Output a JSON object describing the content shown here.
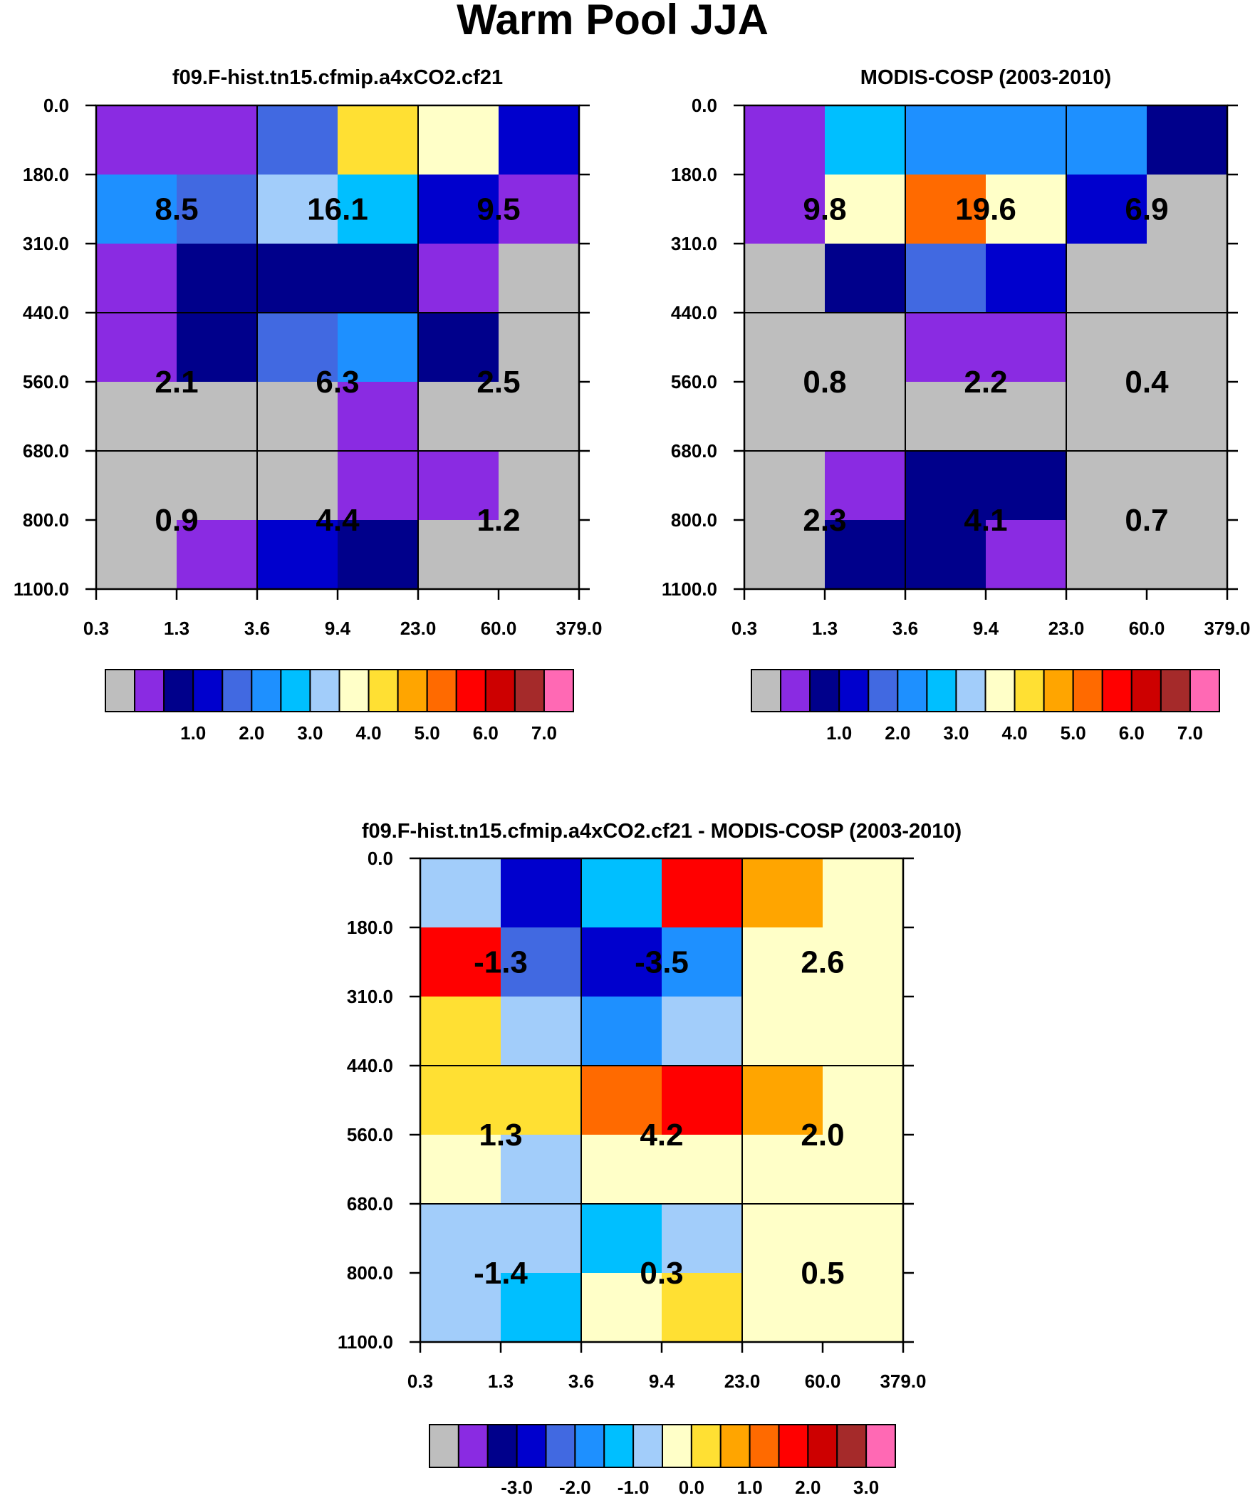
{
  "title": "Warm Pool JJA",
  "colors": {
    "palette": [
      "#bebebe",
      "#8a2be2",
      "#00008b",
      "#0000cd",
      "#4169e1",
      "#1e90ff",
      "#00bfff",
      "#a2cdfa",
      "#ffffc8",
      "#ffe033",
      "#ffa500",
      "#ff6a00",
      "#ff0000",
      "#cd0000",
      "#a52a2a",
      "#ff69b4"
    ],
    "line": "#000000"
  },
  "chart_data": [
    {
      "type": "heatmap",
      "id": "model",
      "title": "f09.F-hist.tn15.cfmip.a4xCO2.cf21",
      "x_tick_labels": [
        "0.3",
        "1.3",
        "3.6",
        "9.4",
        "23.0",
        "60.0",
        "379.0"
      ],
      "y_tick_labels": [
        "0.0",
        "180.0",
        "310.0",
        "440.0",
        "560.0",
        "680.0",
        "800.0",
        "1100.0"
      ],
      "cell_color_index": [
        [
          1,
          1,
          4,
          9,
          8,
          3
        ],
        [
          5,
          4,
          7,
          6,
          3,
          1
        ],
        [
          1,
          2,
          2,
          2,
          1,
          0
        ],
        [
          1,
          2,
          4,
          5,
          2,
          0
        ],
        [
          0,
          0,
          0,
          1,
          0,
          0
        ],
        [
          0,
          0,
          0,
          1,
          1,
          0
        ],
        [
          0,
          1,
          3,
          2,
          0,
          0
        ]
      ],
      "cell_labels": [
        [
          "8.5",
          "16.1",
          "9.5"
        ],
        [
          "2.1",
          "6.3",
          "2.5"
        ],
        [
          "0.9",
          "4.4",
          "1.2"
        ]
      ],
      "colorbar_labels": [
        "1.0",
        "2.0",
        "3.0",
        "4.0",
        "5.0",
        "6.0",
        "7.0"
      ]
    },
    {
      "type": "heatmap",
      "id": "obs",
      "title": "MODIS-COSP (2003-2010)",
      "x_tick_labels": [
        "0.3",
        "1.3",
        "3.6",
        "9.4",
        "23.0",
        "60.0",
        "379.0"
      ],
      "y_tick_labels": [
        "0.0",
        "180.0",
        "310.0",
        "440.0",
        "560.0",
        "680.0",
        "800.0",
        "1100.0"
      ],
      "cell_color_index": [
        [
          1,
          6,
          5,
          5,
          5,
          2
        ],
        [
          1,
          8,
          11,
          8,
          3,
          0
        ],
        [
          0,
          2,
          4,
          3,
          0,
          0
        ],
        [
          0,
          0,
          1,
          1,
          0,
          0
        ],
        [
          0,
          0,
          0,
          0,
          0,
          0
        ],
        [
          0,
          1,
          2,
          2,
          0,
          0
        ],
        [
          0,
          2,
          2,
          1,
          0,
          0
        ]
      ],
      "cell_labels": [
        [
          "9.8",
          "19.6",
          "6.9"
        ],
        [
          "0.8",
          "2.2",
          "0.4"
        ],
        [
          "2.3",
          "4.1",
          "0.7"
        ]
      ],
      "colorbar_labels": [
        "1.0",
        "2.0",
        "3.0",
        "4.0",
        "5.0",
        "6.0",
        "7.0"
      ]
    },
    {
      "type": "heatmap",
      "id": "diff",
      "title": "f09.F-hist.tn15.cfmip.a4xCO2.cf21 - MODIS-COSP (2003-2010)",
      "x_tick_labels": [
        "0.3",
        "1.3",
        "3.6",
        "9.4",
        "23.0",
        "60.0",
        "379.0"
      ],
      "y_tick_labels": [
        "0.0",
        "180.0",
        "310.0",
        "440.0",
        "560.0",
        "680.0",
        "800.0",
        "1100.0"
      ],
      "cell_color_index": [
        [
          7,
          3,
          6,
          12,
          10,
          8
        ],
        [
          12,
          4,
          3,
          5,
          8,
          8
        ],
        [
          9,
          7,
          5,
          7,
          8,
          8
        ],
        [
          9,
          9,
          11,
          12,
          10,
          8
        ],
        [
          8,
          7,
          8,
          8,
          8,
          8
        ],
        [
          7,
          7,
          6,
          7,
          8,
          8
        ],
        [
          7,
          6,
          8,
          9,
          8,
          8
        ]
      ],
      "cell_labels": [
        [
          "-1.3",
          "-3.5",
          "2.6"
        ],
        [
          "1.3",
          "4.2",
          "2.0"
        ],
        [
          "-1.4",
          "0.3",
          "0.5"
        ]
      ],
      "colorbar_labels": [
        "-3.0",
        "-2.0",
        "-1.0",
        "0.0",
        "1.0",
        "2.0",
        "3.0"
      ]
    }
  ]
}
